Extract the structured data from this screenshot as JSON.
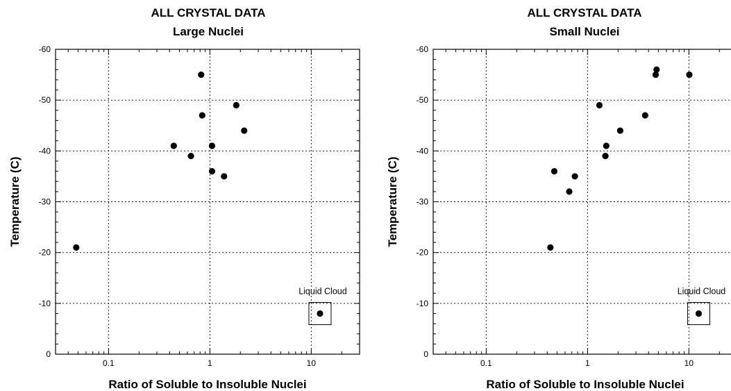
{
  "chart_data": [
    {
      "type": "scatter",
      "title": "ALL CRYSTAL DATA",
      "subtitle": "Large Nuclei",
      "xlabel": "Ratio of Soluble to Insoluble Nuclei",
      "ylabel": "Temperature (C)",
      "xscale": "log",
      "xlim": [
        0.03,
        30
      ],
      "ylim": [
        0,
        -60
      ],
      "xticks": [
        {
          "value": 0.1,
          "label": "0.1"
        },
        {
          "value": 1,
          "label": "1"
        },
        {
          "value": 10,
          "label": "10"
        }
      ],
      "yticks": [
        {
          "value": 0,
          "label": "0"
        },
        {
          "value": -10,
          "label": "-10"
        },
        {
          "value": -20,
          "label": "-20"
        },
        {
          "value": -30,
          "label": "-30"
        },
        {
          "value": -40,
          "label": "-40"
        },
        {
          "value": -50,
          "label": "-50"
        },
        {
          "value": -60,
          "label": "-60"
        }
      ],
      "grid": true,
      "points": [
        {
          "x": 0.048,
          "y": -21
        },
        {
          "x": 0.44,
          "y": -41
        },
        {
          "x": 0.65,
          "y": -39
        },
        {
          "x": 0.82,
          "y": -55
        },
        {
          "x": 0.84,
          "y": -47
        },
        {
          "x": 1.05,
          "y": -41
        },
        {
          "x": 1.05,
          "y": -36
        },
        {
          "x": 1.38,
          "y": -35
        },
        {
          "x": 1.82,
          "y": -49
        },
        {
          "x": 2.18,
          "y": -44
        }
      ],
      "annotation": {
        "text": "Liquid Cloud",
        "point": {
          "x": 12.2,
          "y": -8
        }
      }
    },
    {
      "type": "scatter",
      "title": "ALL CRYSTAL DATA",
      "subtitle": "Small Nuclei",
      "xlabel": "Ratio of Soluble to Insoluble Nuclei",
      "ylabel": "Temperature (C)",
      "xscale": "log",
      "xlim": [
        0.03,
        30
      ],
      "ylim": [
        0,
        -60
      ],
      "xticks": [
        {
          "value": 0.1,
          "label": "0.1"
        },
        {
          "value": 1,
          "label": "1"
        },
        {
          "value": 10,
          "label": "10"
        }
      ],
      "yticks": [
        {
          "value": 0,
          "label": "0"
        },
        {
          "value": -10,
          "label": "-10"
        },
        {
          "value": -20,
          "label": "-20"
        },
        {
          "value": -30,
          "label": "-30"
        },
        {
          "value": -40,
          "label": "-40"
        },
        {
          "value": -50,
          "label": "-50"
        },
        {
          "value": -60,
          "label": "-60"
        }
      ],
      "grid": true,
      "points": [
        {
          "x": 0.43,
          "y": -21
        },
        {
          "x": 0.47,
          "y": -36
        },
        {
          "x": 0.66,
          "y": -32
        },
        {
          "x": 0.75,
          "y": -35
        },
        {
          "x": 1.31,
          "y": -49
        },
        {
          "x": 1.5,
          "y": -39
        },
        {
          "x": 1.53,
          "y": -41
        },
        {
          "x": 2.1,
          "y": -44
        },
        {
          "x": 3.7,
          "y": -47
        },
        {
          "x": 4.7,
          "y": -55
        },
        {
          "x": 4.8,
          "y": -56
        },
        {
          "x": 10.1,
          "y": -55
        }
      ],
      "annotation": {
        "text": "Liquid Cloud",
        "point": {
          "x": 12.5,
          "y": -8
        }
      }
    }
  ]
}
